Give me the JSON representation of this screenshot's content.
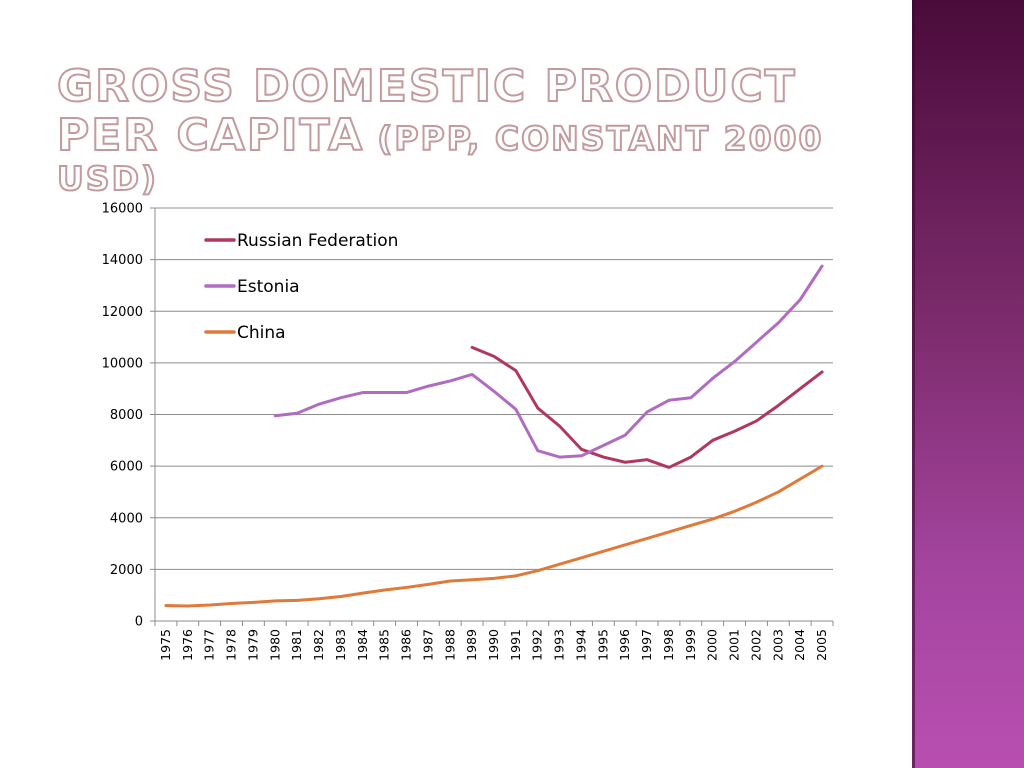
{
  "slide": {
    "title_main": "Gross Domestic Product per Capita",
    "title_sub": "(PPP, constant 2000 USD)",
    "accent_band_color": "#7a2a6a"
  },
  "chart_data": {
    "type": "line",
    "title": "",
    "xlabel": "",
    "ylabel": "",
    "ylim": [
      0,
      16000
    ],
    "yticks": [
      0,
      2000,
      4000,
      6000,
      8000,
      10000,
      12000,
      14000,
      16000
    ],
    "grid": true,
    "legend_position": "top-left",
    "x": [
      1975,
      1976,
      1977,
      1978,
      1979,
      1980,
      1981,
      1982,
      1983,
      1984,
      1985,
      1986,
      1987,
      1988,
      1989,
      1990,
      1991,
      1992,
      1993,
      1994,
      1995,
      1996,
      1997,
      1998,
      1999,
      2000,
      2001,
      2002,
      2003,
      2004,
      2005
    ],
    "series": [
      {
        "name": "Russian Federation",
        "color": "#b0385f",
        "values": [
          null,
          null,
          null,
          null,
          null,
          null,
          null,
          null,
          null,
          null,
          null,
          null,
          null,
          null,
          10600,
          10250,
          9700,
          8250,
          7550,
          6650,
          6350,
          6150,
          6250,
          5950,
          6350,
          7000,
          7350,
          7750,
          8350,
          9000,
          9650
        ]
      },
      {
        "name": "Estonia",
        "color": "#b06cc0",
        "values": [
          null,
          null,
          null,
          null,
          null,
          7950,
          8050,
          8400,
          8650,
          8850,
          8850,
          8850,
          9100,
          9300,
          9550,
          8900,
          8200,
          6600,
          6350,
          6400,
          6800,
          7200,
          8100,
          8550,
          8650,
          9400,
          10050,
          10800,
          11550,
          12450,
          13750
        ]
      },
      {
        "name": "China",
        "color": "#e07a3a",
        "values": [
          600,
          580,
          620,
          680,
          720,
          780,
          800,
          860,
          950,
          1080,
          1200,
          1300,
          1420,
          1550,
          1600,
          1650,
          1750,
          1950,
          2200,
          2450,
          2700,
          2950,
          3200,
          3450,
          3700,
          3950,
          4250,
          4600,
          5000,
          5500,
          6000
        ]
      }
    ]
  }
}
